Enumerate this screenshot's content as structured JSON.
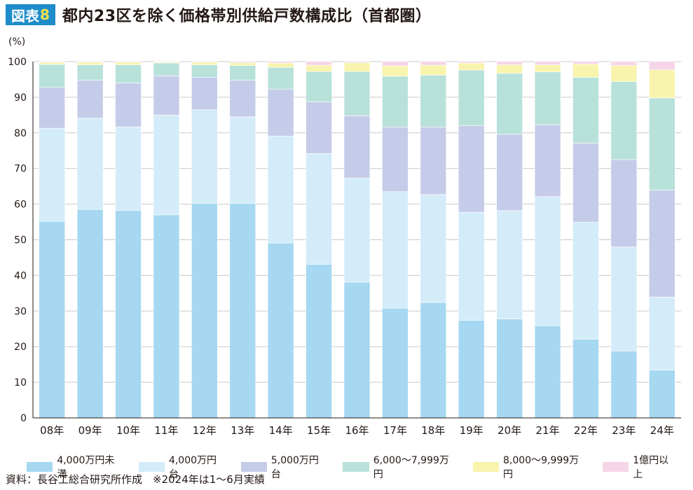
{
  "header": {
    "badge_label": "図表",
    "badge_number": "8",
    "title": "都内23区を除く価格帯別供給戸数構成比（首都圏）"
  },
  "chart_data": {
    "type": "bar",
    "stacked": true,
    "title": "都内23区を除く価格帯別供給戸数構成比（首都圏）",
    "ylabel": "(%)",
    "xlabel": "",
    "ylim": [
      0,
      100
    ],
    "yticks": [
      "0",
      "10",
      "20",
      "30",
      "40",
      "50",
      "60",
      "70",
      "80",
      "90",
      "100"
    ],
    "grid": true,
    "legend_position": "bottom",
    "categories": [
      "08年",
      "09年",
      "10年",
      "11年",
      "12年",
      "13年",
      "14年",
      "15年",
      "16年",
      "17年",
      "18年",
      "19年",
      "20年",
      "21年",
      "22年",
      "23年",
      "24年"
    ],
    "series": [
      {
        "name": "4,000万円未満",
        "color": "#a6d8f1",
        "values": [
          55.2,
          58.5,
          58.2,
          57.0,
          60.2,
          60.2,
          49.1,
          43.1,
          38.1,
          30.8,
          32.4,
          27.4,
          27.8,
          25.9,
          22.1,
          18.8,
          13.4
        ]
      },
      {
        "name": "4,000万円台",
        "color": "#d4ecf9",
        "values": [
          26.1,
          25.6,
          23.5,
          28.0,
          26.3,
          24.3,
          30.0,
          31.1,
          29.2,
          32.7,
          30.3,
          30.3,
          30.4,
          36.2,
          32.8,
          29.2,
          20.5
        ]
      },
      {
        "name": "5,000万円台",
        "color": "#c5cce9",
        "values": [
          11.5,
          10.7,
          12.3,
          11.0,
          9.1,
          10.3,
          13.2,
          14.5,
          17.5,
          18.1,
          18.9,
          24.3,
          21.4,
          20.1,
          22.2,
          24.5,
          30.0
        ]
      },
      {
        "name": "6,000～7,999万円",
        "color": "#b8e1da",
        "values": [
          6.4,
          4.3,
          5.1,
          3.6,
          3.5,
          4.1,
          6.1,
          8.5,
          12.4,
          14.3,
          14.6,
          15.6,
          17.1,
          14.9,
          18.5,
          21.9,
          25.9
        ]
      },
      {
        "name": "8,000～9,999万円",
        "color": "#f8f4ad",
        "values": [
          0.6,
          0.7,
          0.7,
          0.3,
          0.7,
          0.8,
          1.2,
          1.8,
          2.5,
          2.9,
          2.8,
          2.0,
          2.4,
          2.0,
          3.7,
          4.5,
          7.9
        ]
      },
      {
        "name": "1億円以上",
        "color": "#f6d5e8",
        "values": [
          0.2,
          0.2,
          0.2,
          0.1,
          0.2,
          0.3,
          0.4,
          1.0,
          0.3,
          1.2,
          1.0,
          0.4,
          0.9,
          0.9,
          0.7,
          1.1,
          2.3
        ]
      }
    ]
  },
  "footer": {
    "source": "資料：長谷工総合研究所作成　※2024年は1～6月実績"
  }
}
